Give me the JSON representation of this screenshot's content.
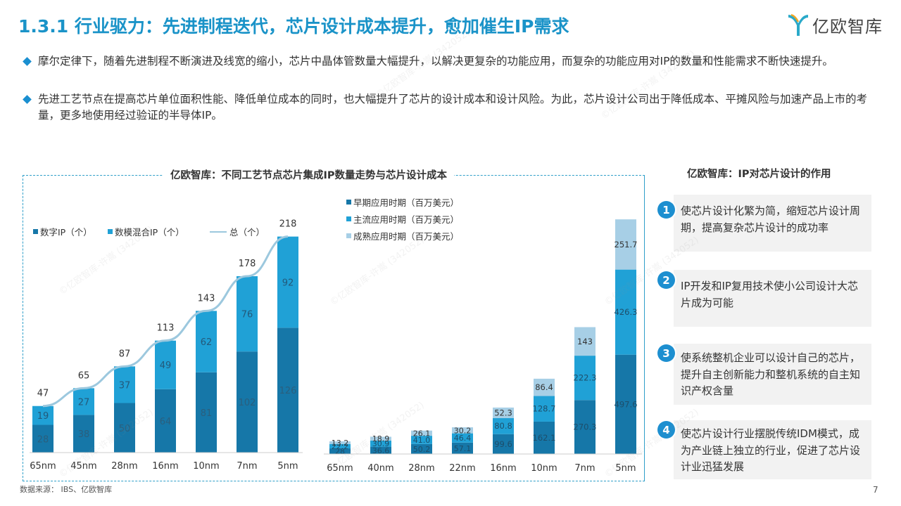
{
  "header": {
    "title": "1.3.1 行业驱力：先进制程迭代，芯片设计成本提升，愈加催生IP需求",
    "logo_text": "亿欧智库",
    "accent_color": "#1a93c8"
  },
  "bullets": [
    "摩尔定律下，随着先进制程不断演进及线宽的缩小，芯片中晶体管数量大幅提升，以解决更复杂的功能应用，而复杂的功能应用对IP的数量和性能需求不断快速提升。",
    "先进工艺节点在提高芯片单位面积性能、降低单位成本的同时，也大幅提升了芯片的设计成本和设计风险。为此，芯片设计公司出于降低成本、平摊风险与加速产品上市的考量，更多地使用经过验证的半导体IP。"
  ],
  "chart_panel": {
    "title": "亿欧智库：不同工艺节点芯片集成IP数量走势与芯片设计成本"
  },
  "chart_data": [
    {
      "type": "bar",
      "stacked": true,
      "categories": [
        "65nm",
        "45nm",
        "28nm",
        "16nm",
        "10nm",
        "7nm",
        "5nm"
      ],
      "series": [
        {
          "name": "数字IP（个）",
          "values": [
            28,
            38,
            50,
            64,
            81,
            102,
            126
          ],
          "color": "#1677a8"
        },
        {
          "name": "数模混合IP（个）",
          "values": [
            19,
            27,
            37,
            49,
            62,
            76,
            92
          ],
          "color": "#20a1d6"
        },
        {
          "name": "总（个）",
          "type": "line",
          "values": [
            47,
            65,
            87,
            113,
            143,
            178,
            218
          ],
          "color": "#9cc8de"
        }
      ],
      "legend": "top-left"
    },
    {
      "type": "bar",
      "stacked": true,
      "categories": [
        "65nm",
        "40nm",
        "28nm",
        "22nm",
        "16nm",
        "10nm",
        "7nm",
        "5nm"
      ],
      "series": [
        {
          "name": "早期应用时期（百万美元）",
          "values": [
            28,
            36.6,
            50.2,
            57.1,
            99.6,
            162.1,
            270.3,
            497.6
          ],
          "color": "#1677a8"
        },
        {
          "name": "主流应用时期（百万美元）",
          "values": [
            22.2,
            30.9,
            41.0,
            46.4,
            80.8,
            128.7,
            222.3,
            426.3
          ],
          "color": "#20a1d6"
        },
        {
          "name": "成熟应用时期（百万美元）",
          "values": [
            13.2,
            18.9,
            26.1,
            30.2,
            52.3,
            86.4,
            143,
            251.7
          ],
          "color": "#a7cfe6"
        }
      ],
      "labels": [
        [
          "28",
          "22.2",
          "13.2"
        ],
        [
          "36.6",
          "30.9",
          "18.9"
        ],
        [
          "50.2",
          "41.0",
          "26.1"
        ],
        [
          "57.1",
          "46.4",
          "30.2"
        ],
        [
          "99.6",
          "80.8",
          "52.3"
        ],
        [
          "162.1",
          "128.7",
          "86.4"
        ],
        [
          "270.3",
          "222.3",
          "143"
        ],
        [
          "497.6",
          "426.3",
          "251.7"
        ]
      ],
      "legend": "top-left"
    }
  ],
  "right_panel": {
    "title": "亿欧智库：IP对芯片设计的作用",
    "items": [
      {
        "num": "1",
        "text": "使芯片设计化繁为简，缩短芯片设计周期，提高复杂芯片设计的成功率"
      },
      {
        "num": "2",
        "text": "IP开发和IP复用技术使小公司设计大芯片成为可能"
      },
      {
        "num": "3",
        "text": "使系统整机企业可以设计自己的芯片，提升自主创新能力和整机系统的自主知识产权含量"
      },
      {
        "num": "4",
        "text": "使芯片设计行业摆脱传统IDM模式，成为产业链上独立的行业，促进了芯片设计业迅猛发展"
      }
    ]
  },
  "footer": {
    "source": "数据来源： IBS、亿欧智库",
    "page": "7"
  },
  "watermark": "©亿欧智库-许嵩 (342052)"
}
